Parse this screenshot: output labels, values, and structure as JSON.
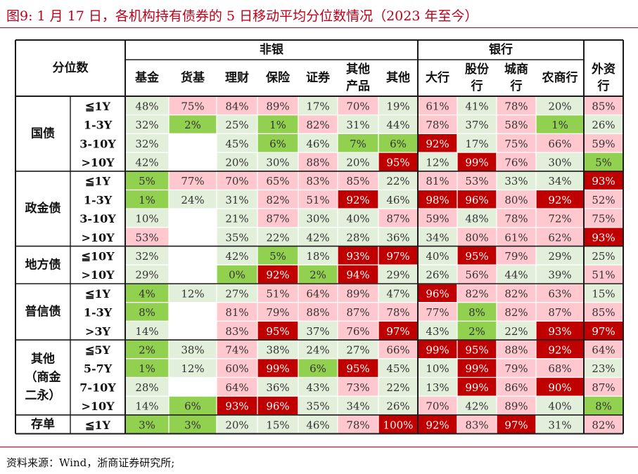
{
  "title": "图9:  1 月 17 日，各机构持有债券的 5 日移动平均分位数情况（2023 年至今）",
  "source": "资料来源：Wind，浙商证券研究所;",
  "colors": {
    "dark_red": "#c00000",
    "pink": "#ffc7ce",
    "green": "#92d050",
    "pale_green": "#e2efda",
    "white": "#ffffff",
    "line": "#1a1a1a"
  },
  "chart_data": {
    "type": "table",
    "corner_label": "分位数",
    "groups": [
      {
        "label": "非银",
        "columns": [
          "基金",
          "货基",
          "理财",
          "保险",
          "证券",
          "其他\n产品",
          "其他"
        ]
      },
      {
        "label": "银行",
        "columns": [
          "大行",
          "股份\n行",
          "城商\n行",
          "农商行"
        ]
      },
      {
        "label": "",
        "columns": [
          "外资\n行"
        ]
      }
    ],
    "bond_types": [
      {
        "label": "国债",
        "rows": [
          {
            "term": "≦1Y",
            "values": [
              "48%",
              "75%",
              "84%",
              "89%",
              "17%",
              "70%",
              "19%",
              "61%",
              "41%",
              "78%",
              "20%",
              "85%"
            ]
          },
          {
            "term": "1-3Y",
            "values": [
              "32%",
              "2%",
              "25%",
              "1%",
              "82%",
              "31%",
              "44%",
              "78%",
              "37%",
              "58%",
              "1%",
              "26%"
            ]
          },
          {
            "term": "3-10Y",
            "values": [
              "32%",
              "",
              "45%",
              "6%",
              "46%",
              "7%",
              "6%",
              "92%",
              "17%",
              "75%",
              "66%",
              "59%"
            ]
          },
          {
            "term": ">10Y",
            "values": [
              "42%",
              "",
              "20%",
              "30%",
              "88%",
              "20%",
              "95%",
              "12%",
              "99%",
              "76%",
              "30%",
              "5%"
            ]
          }
        ]
      },
      {
        "label": "政金债",
        "rows": [
          {
            "term": "≦1Y",
            "values": [
              "5%",
              "77%",
              "70%",
              "65%",
              "83%",
              "85%",
              "22%",
              "81%",
              "53%",
              "33%",
              "34%",
              "93%"
            ]
          },
          {
            "term": "1-3Y",
            "values": [
              "1%",
              "24%",
              "31%",
              "82%",
              "51%",
              "92%",
              "46%",
              "98%",
              "96%",
              "80%",
              "92%",
              "52%"
            ]
          },
          {
            "term": "3-10Y",
            "values": [
              "10%",
              "",
              "21%",
              "87%",
              "30%",
              "40%",
              "87%",
              "59%",
              "48%",
              "78%",
              "72%",
              "75%"
            ]
          },
          {
            "term": ">10Y",
            "values": [
              "53%",
              "",
              "35%",
              "22%",
              "42%",
              "28%",
              "36%",
              "34%",
              "80%",
              "61%",
              "62%",
              "93%"
            ]
          }
        ]
      },
      {
        "label": "地方债",
        "rows": [
          {
            "term": "≦10Y",
            "values": [
              "32%",
              "",
              "42%",
              "5%",
              "18%",
              "93%",
              "97%",
              "40%",
              "95%",
              "79%",
              "29%",
              "25%"
            ]
          },
          {
            "term": ">10Y",
            "values": [
              "29%",
              "",
              "0%",
              "92%",
              "2%",
              "94%",
              "29%",
              "26%",
              "56%",
              "44%",
              "39%",
              "51%"
            ]
          }
        ]
      },
      {
        "label": "普信债",
        "rows": [
          {
            "term": "≦1Y",
            "values": [
              "4%",
              "12%",
              "27%",
              "51%",
              "64%",
              "89%",
              "47%",
              "96%",
              "82%",
              "82%",
              "63%",
              "15%"
            ]
          },
          {
            "term": "1-3Y",
            "values": [
              "8%",
              "",
              "81%",
              "79%",
              "88%",
              "87%",
              "78%",
              "77%",
              "8%",
              "82%",
              "87%",
              "85%"
            ]
          },
          {
            "term": ">3Y",
            "values": [
              "14%",
              "",
              "83%",
              "95%",
              "37%",
              "76%",
              "97%",
              "43%",
              "2%",
              "22%",
              "93%",
              "97%"
            ]
          }
        ]
      },
      {
        "label": "其他\n（商金\n二永）",
        "rows": [
          {
            "term": "≦5Y",
            "values": [
              "2%",
              "38%",
              "74%",
              "38%",
              "24%",
              "27%",
              "66%",
              "99%",
              "95%",
              "88%",
              "92%",
              "64%"
            ]
          },
          {
            "term": "5-7Y",
            "values": [
              "1%",
              "12%",
              "60%",
              "99%",
              "6%",
              "95%",
              "45%",
              "10%",
              "99%",
              "79%",
              "68%",
              "23%"
            ]
          },
          {
            "term": "7-10Y",
            "values": [
              "28%",
              "",
              "64%",
              "36%",
              "43%",
              "73%",
              "22%",
              "13%",
              "99%",
              "86%",
              "90%",
              "87%"
            ]
          },
          {
            "term": ">10Y",
            "values": [
              "14%",
              "6%",
              "93%",
              "96%",
              "35%",
              "34%",
              "26%",
              "70%",
              "42%",
              "89%",
              "40%",
              "8%"
            ]
          }
        ]
      },
      {
        "label": "存单",
        "rows": [
          {
            "term": "≦1Y",
            "values": [
              "3%",
              "3%",
              "20%",
              "15%",
              "46%",
              "78%",
              "100%",
              "92%",
              "83%",
              "97%",
              "31%",
              "82%"
            ]
          }
        ]
      }
    ]
  }
}
